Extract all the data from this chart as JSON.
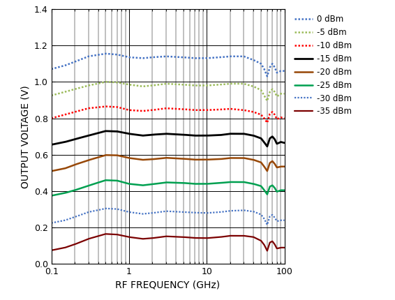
{
  "xlabel": "RF FREQUENCY (GHz)",
  "ylabel": "OUTPUT VOLTAGE (V)",
  "xmin": 0.1,
  "xmax": 100,
  "ymin": 0,
  "ymax": 1.4,
  "yticks": [
    0,
    0.2,
    0.4,
    0.6,
    0.8,
    1.0,
    1.2,
    1.4
  ],
  "series": [
    {
      "label": "0 dBm",
      "color": "#4472C4",
      "dotted": true,
      "lw": 1.8,
      "pts": [
        [
          0.1,
          1.07
        ],
        [
          0.15,
          1.09
        ],
        [
          0.2,
          1.11
        ],
        [
          0.3,
          1.14
        ],
        [
          0.5,
          1.155
        ],
        [
          0.7,
          1.15
        ],
        [
          1.0,
          1.135
        ],
        [
          1.5,
          1.13
        ],
        [
          2.0,
          1.135
        ],
        [
          3.0,
          1.14
        ],
        [
          5.0,
          1.135
        ],
        [
          7.0,
          1.13
        ],
        [
          10.0,
          1.13
        ],
        [
          15.0,
          1.135
        ],
        [
          20.0,
          1.14
        ],
        [
          30.0,
          1.14
        ],
        [
          40.0,
          1.12
        ],
        [
          50.0,
          1.1
        ],
        [
          55.0,
          1.07
        ],
        [
          60.0,
          1.03
        ],
        [
          65.0,
          1.08
        ],
        [
          70.0,
          1.1
        ],
        [
          75.0,
          1.08
        ],
        [
          80.0,
          1.05
        ],
        [
          90.0,
          1.06
        ],
        [
          100.0,
          1.06
        ]
      ]
    },
    {
      "label": "-5 dBm",
      "color": "#9BBB59",
      "dotted": true,
      "lw": 1.8,
      "pts": [
        [
          0.1,
          0.925
        ],
        [
          0.15,
          0.945
        ],
        [
          0.2,
          0.96
        ],
        [
          0.3,
          0.98
        ],
        [
          0.5,
          1.0
        ],
        [
          0.7,
          0.997
        ],
        [
          1.0,
          0.985
        ],
        [
          1.5,
          0.975
        ],
        [
          2.0,
          0.98
        ],
        [
          3.0,
          0.99
        ],
        [
          5.0,
          0.985
        ],
        [
          7.0,
          0.98
        ],
        [
          10.0,
          0.98
        ],
        [
          15.0,
          0.985
        ],
        [
          20.0,
          0.99
        ],
        [
          30.0,
          0.99
        ],
        [
          40.0,
          0.975
        ],
        [
          50.0,
          0.955
        ],
        [
          55.0,
          0.925
        ],
        [
          60.0,
          0.895
        ],
        [
          65.0,
          0.945
        ],
        [
          70.0,
          0.96
        ],
        [
          75.0,
          0.945
        ],
        [
          80.0,
          0.92
        ],
        [
          90.0,
          0.935
        ],
        [
          100.0,
          0.935
        ]
      ]
    },
    {
      "label": "-10 dBm",
      "color": "#FF0000",
      "dotted": true,
      "lw": 1.8,
      "pts": [
        [
          0.1,
          0.8
        ],
        [
          0.15,
          0.82
        ],
        [
          0.2,
          0.835
        ],
        [
          0.3,
          0.855
        ],
        [
          0.5,
          0.865
        ],
        [
          0.7,
          0.862
        ],
        [
          1.0,
          0.845
        ],
        [
          1.5,
          0.84
        ],
        [
          2.0,
          0.845
        ],
        [
          3.0,
          0.855
        ],
        [
          5.0,
          0.85
        ],
        [
          7.0,
          0.845
        ],
        [
          10.0,
          0.845
        ],
        [
          15.0,
          0.848
        ],
        [
          20.0,
          0.852
        ],
        [
          30.0,
          0.845
        ],
        [
          40.0,
          0.835
        ],
        [
          50.0,
          0.82
        ],
        [
          55.0,
          0.8
        ],
        [
          60.0,
          0.775
        ],
        [
          65.0,
          0.825
        ],
        [
          70.0,
          0.835
        ],
        [
          75.0,
          0.82
        ],
        [
          80.0,
          0.795
        ],
        [
          90.0,
          0.805
        ],
        [
          100.0,
          0.8
        ]
      ]
    },
    {
      "label": "-15 dBm",
      "color": "#000000",
      "dotted": false,
      "lw": 2.0,
      "pts": [
        [
          0.1,
          0.655
        ],
        [
          0.15,
          0.67
        ],
        [
          0.2,
          0.685
        ],
        [
          0.3,
          0.705
        ],
        [
          0.5,
          0.73
        ],
        [
          0.7,
          0.728
        ],
        [
          1.0,
          0.715
        ],
        [
          1.5,
          0.705
        ],
        [
          2.0,
          0.71
        ],
        [
          3.0,
          0.715
        ],
        [
          5.0,
          0.71
        ],
        [
          7.0,
          0.705
        ],
        [
          10.0,
          0.705
        ],
        [
          15.0,
          0.708
        ],
        [
          20.0,
          0.715
        ],
        [
          30.0,
          0.715
        ],
        [
          40.0,
          0.705
        ],
        [
          50.0,
          0.69
        ],
        [
          55.0,
          0.668
        ],
        [
          60.0,
          0.645
        ],
        [
          65.0,
          0.69
        ],
        [
          70.0,
          0.7
        ],
        [
          75.0,
          0.685
        ],
        [
          80.0,
          0.66
        ],
        [
          90.0,
          0.67
        ],
        [
          100.0,
          0.665
        ]
      ]
    },
    {
      "label": "-20 dBm",
      "color": "#974706",
      "dotted": false,
      "lw": 1.8,
      "pts": [
        [
          0.1,
          0.51
        ],
        [
          0.15,
          0.525
        ],
        [
          0.2,
          0.545
        ],
        [
          0.3,
          0.57
        ],
        [
          0.5,
          0.598
        ],
        [
          0.7,
          0.597
        ],
        [
          1.0,
          0.582
        ],
        [
          1.5,
          0.572
        ],
        [
          2.0,
          0.575
        ],
        [
          3.0,
          0.583
        ],
        [
          5.0,
          0.578
        ],
        [
          7.0,
          0.573
        ],
        [
          10.0,
          0.573
        ],
        [
          15.0,
          0.576
        ],
        [
          20.0,
          0.582
        ],
        [
          30.0,
          0.582
        ],
        [
          40.0,
          0.572
        ],
        [
          50.0,
          0.558
        ],
        [
          55.0,
          0.535
        ],
        [
          60.0,
          0.51
        ],
        [
          65.0,
          0.555
        ],
        [
          70.0,
          0.565
        ],
        [
          75.0,
          0.55
        ],
        [
          80.0,
          0.53
        ],
        [
          90.0,
          0.535
        ],
        [
          100.0,
          0.535
        ]
      ]
    },
    {
      "label": "-25 dBm",
      "color": "#00A050",
      "dotted": false,
      "lw": 1.8,
      "pts": [
        [
          0.1,
          0.375
        ],
        [
          0.15,
          0.39
        ],
        [
          0.2,
          0.405
        ],
        [
          0.3,
          0.43
        ],
        [
          0.5,
          0.46
        ],
        [
          0.7,
          0.458
        ],
        [
          1.0,
          0.44
        ],
        [
          1.5,
          0.432
        ],
        [
          2.0,
          0.438
        ],
        [
          3.0,
          0.448
        ],
        [
          5.0,
          0.445
        ],
        [
          7.0,
          0.44
        ],
        [
          10.0,
          0.44
        ],
        [
          15.0,
          0.445
        ],
        [
          20.0,
          0.45
        ],
        [
          30.0,
          0.45
        ],
        [
          40.0,
          0.44
        ],
        [
          50.0,
          0.428
        ],
        [
          55.0,
          0.406
        ],
        [
          60.0,
          0.382
        ],
        [
          65.0,
          0.425
        ],
        [
          70.0,
          0.432
        ],
        [
          75.0,
          0.418
        ],
        [
          80.0,
          0.397
        ],
        [
          90.0,
          0.405
        ],
        [
          100.0,
          0.405
        ]
      ]
    },
    {
      "label": "-30 dBm",
      "color": "#4472C4",
      "dotted": true,
      "lw": 1.6,
      "pts": [
        [
          0.1,
          0.225
        ],
        [
          0.15,
          0.24
        ],
        [
          0.2,
          0.258
        ],
        [
          0.3,
          0.285
        ],
        [
          0.5,
          0.305
        ],
        [
          0.7,
          0.302
        ],
        [
          1.0,
          0.285
        ],
        [
          1.5,
          0.275
        ],
        [
          2.0,
          0.28
        ],
        [
          3.0,
          0.29
        ],
        [
          5.0,
          0.285
        ],
        [
          7.0,
          0.282
        ],
        [
          10.0,
          0.28
        ],
        [
          15.0,
          0.285
        ],
        [
          20.0,
          0.292
        ],
        [
          30.0,
          0.295
        ],
        [
          40.0,
          0.288
        ],
        [
          50.0,
          0.272
        ],
        [
          55.0,
          0.248
        ],
        [
          60.0,
          0.215
        ],
        [
          65.0,
          0.262
        ],
        [
          70.0,
          0.27
        ],
        [
          75.0,
          0.255
        ],
        [
          80.0,
          0.235
        ],
        [
          90.0,
          0.24
        ],
        [
          100.0,
          0.24
        ]
      ]
    },
    {
      "label": "-35 dBm",
      "color": "#7B0000",
      "dotted": false,
      "lw": 1.6,
      "pts": [
        [
          0.1,
          0.075
        ],
        [
          0.15,
          0.09
        ],
        [
          0.2,
          0.108
        ],
        [
          0.3,
          0.138
        ],
        [
          0.5,
          0.165
        ],
        [
          0.7,
          0.162
        ],
        [
          1.0,
          0.148
        ],
        [
          1.5,
          0.138
        ],
        [
          2.0,
          0.142
        ],
        [
          3.0,
          0.152
        ],
        [
          5.0,
          0.148
        ],
        [
          7.0,
          0.143
        ],
        [
          10.0,
          0.142
        ],
        [
          15.0,
          0.148
        ],
        [
          20.0,
          0.155
        ],
        [
          30.0,
          0.155
        ],
        [
          40.0,
          0.148
        ],
        [
          50.0,
          0.128
        ],
        [
          55.0,
          0.105
        ],
        [
          60.0,
          0.072
        ],
        [
          65.0,
          0.118
        ],
        [
          70.0,
          0.125
        ],
        [
          75.0,
          0.108
        ],
        [
          80.0,
          0.085
        ],
        [
          90.0,
          0.09
        ],
        [
          100.0,
          0.09
        ]
      ]
    }
  ]
}
